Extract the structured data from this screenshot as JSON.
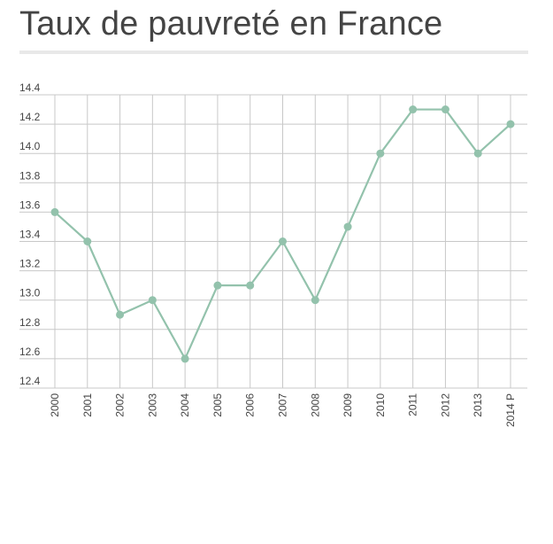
{
  "title": "Taux de pauvreté en France",
  "colors": {
    "line": "#93c2ac",
    "grid": "#c8c8c8",
    "text": "#444444"
  },
  "chart_data": {
    "type": "line",
    "title": "Taux de pauvreté en France",
    "xlabel": "",
    "ylabel": "",
    "categories": [
      "2000",
      "2001",
      "2002",
      "2003",
      "2004",
      "2005",
      "2006",
      "2007",
      "2008",
      "2009",
      "2010",
      "2011",
      "2012",
      "2013",
      "2014 P"
    ],
    "series": [
      {
        "values": [
          13.6,
          13.4,
          12.9,
          13.0,
          12.6,
          13.1,
          13.1,
          13.4,
          13.0,
          13.5,
          14.0,
          14.3,
          14.3,
          14.0,
          14.2
        ]
      }
    ],
    "ylim": [
      12.4,
      14.4
    ],
    "yticks": [
      "12.4",
      "12.6",
      "12.8",
      "13.0",
      "13.2",
      "13.4",
      "13.6",
      "13.8",
      "14.0",
      "14.2",
      "14.4"
    ],
    "grid": true,
    "markers": true
  }
}
